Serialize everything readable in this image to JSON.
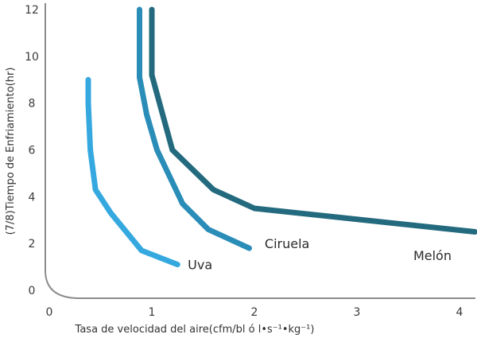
{
  "chart_data": {
    "type": "line",
    "title": "",
    "xlabel": "Tasa de velocidad del aire(cfm/bl ó l•s⁻¹•kg⁻¹)",
    "ylabel": "(7/8)Tiempo de Enfriamiento(hr)",
    "xlim": [
      0,
      4.15
    ],
    "ylim": [
      0,
      12
    ],
    "x_ticks": [
      "0",
      "1",
      "2",
      "3",
      "4"
    ],
    "y_ticks": [
      "0",
      "2",
      "4",
      "6",
      "8",
      "10",
      "12"
    ],
    "grid": false,
    "series": [
      {
        "name": "Uva",
        "color": "#35a9df",
        "x": [
          0.38,
          0.38,
          0.4,
          0.45,
          0.6,
          0.9,
          1.25
        ],
        "y": [
          9.0,
          8.0,
          6.0,
          4.3,
          3.3,
          1.7,
          1.1
        ]
      },
      {
        "name": "Ciruela",
        "color": "#2a8db8",
        "x": [
          0.88,
          0.88,
          0.88,
          0.95,
          1.05,
          1.3,
          1.55,
          1.95
        ],
        "y": [
          12.0,
          10.0,
          9.1,
          7.5,
          6.0,
          3.7,
          2.6,
          1.8
        ]
      },
      {
        "name": "Melón",
        "color": "#236a7e",
        "x": [
          1.0,
          1.0,
          1.0,
          1.2,
          1.6,
          2.0,
          4.15
        ],
        "y": [
          12.0,
          10.0,
          9.2,
          6.0,
          4.3,
          3.5,
          2.5
        ]
      }
    ]
  }
}
